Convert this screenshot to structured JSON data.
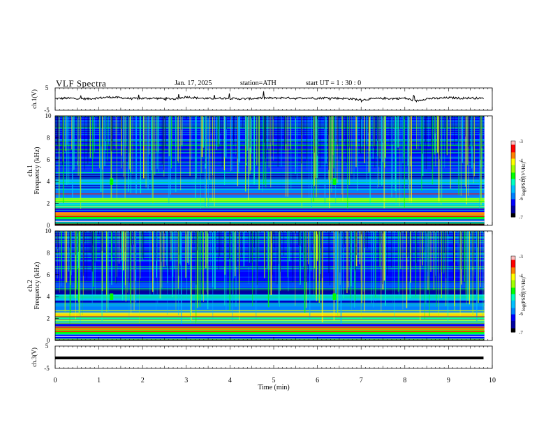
{
  "header": {
    "title": "VLF  Spectra",
    "date": "Jan. 17, 2025",
    "station": "station=ATH",
    "start": "start  UT  =   1 : 30 : 0"
  },
  "chart_data": [
    {
      "type": "line",
      "panel": "ch.1",
      "ylabel": "ch.1(V)",
      "ylim": [
        -5,
        5
      ],
      "yticks": [
        "5",
        "-5"
      ],
      "xlim": [
        0,
        10
      ],
      "x": [
        0.0,
        0.25,
        0.5,
        0.75,
        1.0,
        1.25,
        1.5,
        1.75,
        2.0,
        2.25,
        2.5,
        2.75,
        3.0,
        3.25,
        3.5,
        3.75,
        4.0,
        4.25,
        4.5,
        4.75,
        5.0,
        5.25,
        5.5,
        5.75,
        6.0,
        6.25,
        6.5,
        6.75,
        7.0,
        7.25,
        7.5,
        7.75,
        8.0,
        8.25,
        8.5,
        8.75,
        9.0,
        9.25,
        9.5,
        9.8
      ],
      "y": [
        0.2,
        0.4,
        0.3,
        0.1,
        0.5,
        0.9,
        0.6,
        0.2,
        0.3,
        0.4,
        0.2,
        0.1,
        1.0,
        0.5,
        0.2,
        0.4,
        0.3,
        0.1,
        0.2,
        0.5,
        0.4,
        0.6,
        0.3,
        0.5,
        0.4,
        0.6,
        0.3,
        0.2,
        -0.4,
        0.1,
        0.3,
        0.2,
        0.4,
        -0.9,
        0.2,
        0.3,
        0.6,
        0.4,
        0.5,
        0.3
      ]
    },
    {
      "type": "heatmap",
      "panel": "ch.1",
      "ylabel": "Frequency (kHz)",
      "ylabel2": "ch.1",
      "ylim": [
        0,
        10
      ],
      "yticks": [
        "0",
        "2",
        "4",
        "6",
        "8",
        "10"
      ],
      "xlim": [
        0,
        10
      ],
      "colorbar": {
        "label": "log(PSD)(V²/Hz)",
        "range": [
          -7,
          -3
        ],
        "ticks": [
          "-3",
          "-4",
          "-5",
          "-6",
          "-7"
        ]
      }
    },
    {
      "type": "heatmap",
      "panel": "ch.2",
      "ylabel": "Frequency (kHz)",
      "ylabel2": "ch.2",
      "ylim": [
        0,
        10
      ],
      "yticks": [
        "0",
        "2",
        "4",
        "6",
        "8",
        "10"
      ],
      "xlim": [
        0,
        10
      ],
      "colorbar": {
        "label": "log(PSD)(V²/Hz)",
        "range": [
          -7,
          -3
        ],
        "ticks": [
          "-3",
          "-4",
          "-5",
          "-6",
          "-7"
        ]
      }
    },
    {
      "type": "line",
      "panel": "ch.3",
      "ylabel": "ch.3(V)",
      "ylim": [
        -5,
        5
      ],
      "yticks": [
        "5",
        "-5"
      ],
      "xlim": [
        0,
        10
      ],
      "x": [
        0.0,
        9.8
      ],
      "y": [
        -0.3,
        -0.3
      ]
    }
  ],
  "xaxis": {
    "label": "Time  (min)",
    "ticks": [
      "0",
      "1",
      "2",
      "3",
      "4",
      "5",
      "6",
      "7",
      "8",
      "9",
      "10"
    ]
  },
  "colors": {
    "colormap": [
      "#000000",
      "#0000a0",
      "#0000ff",
      "#0080ff",
      "#00c0ff",
      "#00ffc0",
      "#00ff00",
      "#a0ff00",
      "#ffff00",
      "#ff8000",
      "#ff0000",
      "#ffc0c0"
    ]
  }
}
